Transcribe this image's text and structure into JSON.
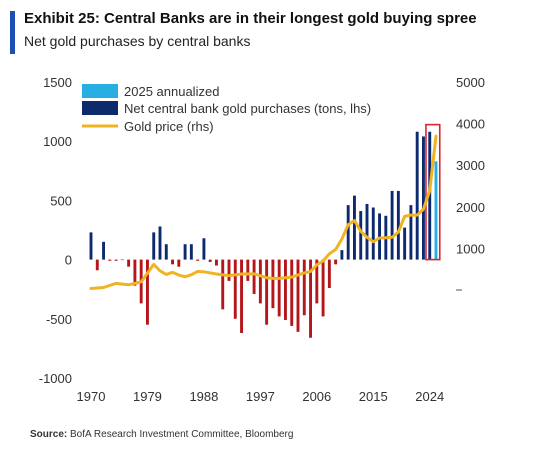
{
  "header": {
    "title": "Exhibit 25: Central Banks are in their longest gold buying spree",
    "subtitle": "Net gold purchases by central banks"
  },
  "footer": {
    "source_label": "Source:",
    "source_text": "BofA Research Investment Committee, Bloomberg"
  },
  "colors": {
    "net_purchases": "#0d2a6e",
    "negative": "#b3161b",
    "annualized_2025": "#27aee3",
    "gold_price": "#f0b323",
    "highlight_box": "#d9262e"
  },
  "chart_data": {
    "type": "bar",
    "x_tick_labels": [
      "1970",
      "1979",
      "1988",
      "1997",
      "2006",
      "2015",
      "2024"
    ],
    "x_ticks": [
      1970,
      1979,
      1988,
      1997,
      2006,
      2015,
      2024
    ],
    "xlim": [
      1969,
      2026
    ],
    "y_left_ticks": [
      "1500",
      "1000",
      "500",
      "0",
      "-500",
      "-1000"
    ],
    "y_left_values": [
      1500,
      1000,
      500,
      0,
      -500,
      -1000
    ],
    "ylim_left": [
      -1000,
      1500
    ],
    "y_right_ticks": [
      "5000",
      "4000",
      "3000",
      "2000",
      "1000"
    ],
    "y_right_values": [
      5000,
      4000,
      3000,
      2000,
      1000
    ],
    "ylim_right": [
      0,
      5000
    ],
    "legend": [
      "2025 annualized",
      "Net central bank gold purchases (tons, lhs)",
      "Gold price (rhs)"
    ],
    "legend_position": "top-left",
    "grid": false,
    "series": [
      {
        "name": "Net central bank gold purchases (tons, lhs)",
        "x": [
          1970,
          1971,
          1972,
          1973,
          1974,
          1975,
          1976,
          1977,
          1978,
          1979,
          1980,
          1981,
          1982,
          1983,
          1984,
          1985,
          1986,
          1987,
          1988,
          1989,
          1990,
          1991,
          1992,
          1993,
          1994,
          1995,
          1996,
          1997,
          1998,
          1999,
          2000,
          2001,
          2002,
          2003,
          2004,
          2005,
          2006,
          2007,
          2008,
          2009,
          2010,
          2011,
          2012,
          2013,
          2014,
          2015,
          2016,
          2017,
          2018,
          2019,
          2020,
          2021,
          2022,
          2023,
          2024
        ],
        "values": [
          230,
          -90,
          150,
          -10,
          -10,
          0,
          -60,
          -220,
          -370,
          -550,
          230,
          280,
          130,
          -40,
          -60,
          130,
          130,
          -10,
          180,
          -20,
          -50,
          -420,
          -180,
          -500,
          -620,
          -180,
          -290,
          -370,
          -550,
          -410,
          -480,
          -510,
          -560,
          -610,
          -470,
          -660,
          -370,
          -480,
          -240,
          -40,
          80,
          460,
          540,
          410,
          470,
          440,
          390,
          370,
          580,
          580,
          270,
          460,
          1080,
          1040,
          1080
        ]
      },
      {
        "name": "2025 annualized",
        "x": [
          2025
        ],
        "values": [
          830
        ]
      },
      {
        "name": "Gold price (rhs)",
        "type": "line",
        "x": [
          1970,
          1972,
          1974,
          1976,
          1978,
          1980,
          1981,
          1982,
          1983,
          1984,
          1985,
          1986,
          1987,
          1988,
          1990,
          1992,
          1994,
          1996,
          1998,
          1999,
          2000,
          2002,
          2004,
          2005,
          2006,
          2007,
          2008,
          2009,
          2010,
          2011,
          2012,
          2013,
          2014,
          2015,
          2016,
          2017,
          2018,
          2019,
          2020,
          2021,
          2022,
          2023,
          2024,
          2025
        ],
        "values": [
          36,
          60,
          160,
          125,
          195,
          615,
          460,
          375,
          425,
          360,
          317,
          368,
          447,
          437,
          384,
          344,
          384,
          388,
          295,
          279,
          280,
          310,
          410,
          445,
          604,
          697,
          872,
          972,
          1225,
          1571,
          1669,
          1411,
          1266,
          1160,
          1250,
          1257,
          1268,
          1393,
          1770,
          1799,
          1800,
          1943,
          2386,
          3700
        ]
      }
    ]
  }
}
